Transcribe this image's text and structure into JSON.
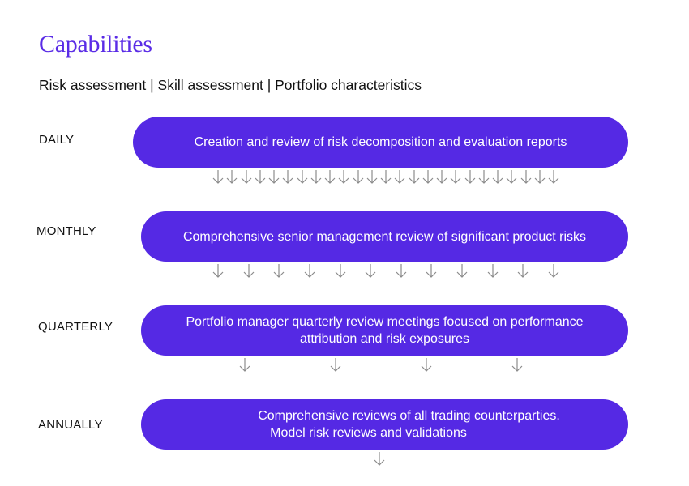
{
  "header": {
    "title": "Capabilities",
    "subtitle": "Risk assessment | Skill assessment | Portfolio characteristics"
  },
  "colors": {
    "title": "#5a2ce6",
    "pill": "#5529e4",
    "pill_text": "#ffffff",
    "arrow": "#8c8c8c",
    "text": "#111111"
  },
  "rows": [
    {
      "frequency": "DAILY",
      "lines": [
        "Creation and review of risk decomposition and evaluation reports"
      ],
      "arrow_count": 25,
      "arrow_icon": "down-arrow-icon"
    },
    {
      "frequency": "MONTHLY",
      "lines": [
        "Comprehensive senior management review of significant product risks"
      ],
      "arrow_count": 12,
      "arrow_icon": "down-arrow-icon"
    },
    {
      "frequency": "QUARTERLY",
      "lines": [
        "Portfolio manager quarterly review meetings focused on performance",
        "attribution and risk exposures"
      ],
      "arrow_count": 4,
      "arrow_icon": "down-arrow-icon"
    },
    {
      "frequency": "ANNUALLY",
      "lines": [
        "Comprehensive reviews of all trading counterparties.",
        "Model risk reviews and validations"
      ],
      "arrow_count": 1,
      "arrow_icon": "down-arrow-icon"
    }
  ]
}
